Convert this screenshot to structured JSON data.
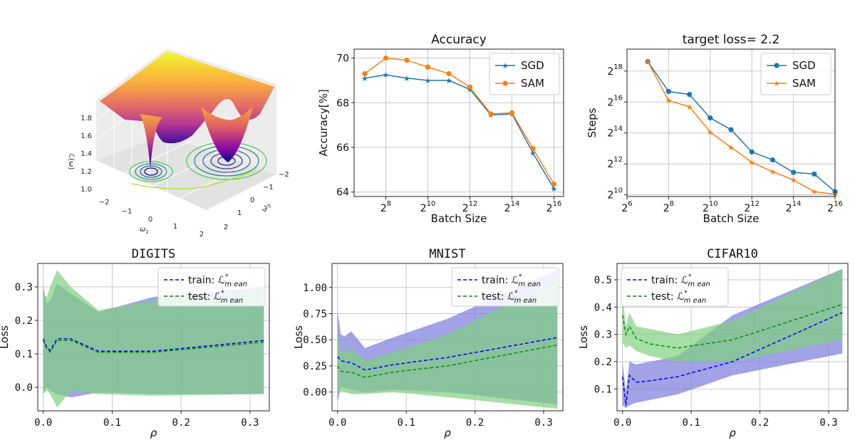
{
  "colors": {
    "sgd": "#1f77b4",
    "sam": "#ff7f0e",
    "train": "#0000ee",
    "test": "#118811",
    "band_train": "#7b7bdb",
    "band_test": "#7fd27f",
    "grid": "#c8c8c8"
  },
  "surface": {
    "zlabel": "ℒ(ω)",
    "xlabel": "ω",
    "xlabel_sub": "1",
    "ylabel": "ω",
    "ylabel_sub": "0",
    "z_ticks": [
      "1.0",
      "1.2",
      "1.4",
      "1.6",
      "1.8"
    ],
    "x_ticks": [
      "−2",
      "−1",
      "0",
      "1",
      "2"
    ],
    "y_ticks": [
      "−2",
      "−1",
      "0",
      "1",
      "2"
    ]
  },
  "chart_data": [
    {
      "id": "accuracy",
      "type": "line",
      "title": "Accuracy",
      "xlabel": "Batch Size",
      "ylabel": "Accuracy[%]",
      "x_scale": "log2",
      "x": [
        128,
        256,
        512,
        1024,
        2048,
        4096,
        8192,
        16384,
        32768,
        65536
      ],
      "xlim": [
        90,
        90000
      ],
      "ylim": [
        63.8,
        70.4
      ],
      "xticks": [
        {
          "base": "2",
          "exp": "8",
          "v": 256
        },
        {
          "base": "2",
          "exp": "10",
          "v": 1024
        },
        {
          "base": "2",
          "exp": "12",
          "v": 4096
        },
        {
          "base": "2",
          "exp": "14",
          "v": 16384
        },
        {
          "base": "2",
          "exp": "16",
          "v": 65536
        }
      ],
      "yticks": [
        {
          "text": "64",
          "v": 64
        },
        {
          "text": "66",
          "v": 66
        },
        {
          "text": "68",
          "v": 68
        },
        {
          "text": "70",
          "v": 70
        }
      ],
      "legend": "top-right",
      "grid": true,
      "series": [
        {
          "name": "SGD",
          "marker": "star",
          "color": "#1f77b4",
          "values": [
            69.1,
            69.25,
            69.1,
            69.0,
            69.0,
            68.6,
            67.45,
            67.5,
            65.75,
            64.15
          ]
        },
        {
          "name": "SAM",
          "marker": "circle",
          "color": "#ff7f0e",
          "values": [
            69.3,
            70.0,
            69.9,
            69.6,
            69.3,
            68.7,
            67.5,
            67.55,
            65.95,
            64.35
          ]
        }
      ]
    },
    {
      "id": "steps",
      "type": "line",
      "title": "target loss= 2.2",
      "xlabel": "Batch Size",
      "ylabel": "Steps",
      "x_scale": "log2",
      "y_scale": "log2",
      "x": [
        128,
        256,
        512,
        1024,
        2048,
        4096,
        8192,
        16384,
        32768,
        65536
      ],
      "xlim": [
        64,
        65536
      ],
      "ylim": [
        950,
        700000
      ],
      "xticks": [
        {
          "base": "2",
          "exp": "6",
          "v": 64
        },
        {
          "base": "2",
          "exp": "8",
          "v": 256
        },
        {
          "base": "2",
          "exp": "10",
          "v": 1024
        },
        {
          "base": "2",
          "exp": "12",
          "v": 4096
        },
        {
          "base": "2",
          "exp": "14",
          "v": 16384
        },
        {
          "base": "2",
          "exp": "16",
          "v": 65536
        }
      ],
      "yticks": [
        {
          "base": "2",
          "exp": "10",
          "v": 1024
        },
        {
          "base": "2",
          "exp": "12",
          "v": 4096
        },
        {
          "base": "2",
          "exp": "14",
          "v": 16384
        },
        {
          "base": "2",
          "exp": "16",
          "v": 65536
        },
        {
          "base": "2",
          "exp": "18",
          "v": 262144
        }
      ],
      "legend": "top-right",
      "grid": true,
      "series": [
        {
          "name": "SGD",
          "marker": "circle",
          "color": "#1f77b4",
          "values": [
            400000,
            105000,
            92000,
            32000,
            19000,
            7000,
            4900,
            2800,
            2600,
            1180
          ]
        },
        {
          "name": "SAM",
          "marker": "star",
          "color": "#ff7f0e",
          "values": [
            400000,
            70000,
            53000,
            17000,
            8600,
            4400,
            2900,
            2000,
            1180,
            1050
          ]
        }
      ]
    },
    {
      "id": "digits",
      "type": "line",
      "title": "DIGITS",
      "xlabel": "ρ",
      "ylabel": "Loss",
      "xlim": [
        -0.008,
        0.328
      ],
      "ylim": [
        -0.07,
        0.37
      ],
      "xticks": [
        {
          "text": "0.0",
          "v": 0
        },
        {
          "text": "0.1",
          "v": 0.1
        },
        {
          "text": "0.2",
          "v": 0.2
        },
        {
          "text": "0.3",
          "v": 0.3
        }
      ],
      "yticks": [
        {
          "text": "0.0",
          "v": 0
        },
        {
          "text": "0.1",
          "v": 0.1
        },
        {
          "text": "0.2",
          "v": 0.2
        },
        {
          "text": "0.3",
          "v": 0.3
        }
      ],
      "x": [
        0,
        0.005,
        0.01,
        0.02,
        0.04,
        0.08,
        0.16,
        0.32
      ],
      "legend": "top-right",
      "grid": true,
      "series": [
        {
          "name": "train",
          "label": "train: ℒ",
          "sub": "m ean",
          "sup": "*",
          "color": "#0000ee",
          "values": [
            0.145,
            0.12,
            0.11,
            0.145,
            0.145,
            0.108,
            0.108,
            0.14
          ],
          "band_lo": [
            -0.015,
            0,
            -0.01,
            -0.02,
            -0.03,
            -0.015,
            -0.02,
            -0.02
          ],
          "band_hi": [
            0.3,
            0.25,
            0.26,
            0.31,
            0.28,
            0.225,
            0.27,
            0.3
          ]
        },
        {
          "name": "test",
          "label": "test: ℒ",
          "sub": "m ean",
          "sup": "*",
          "color": "#118811",
          "values": [
            0.14,
            0.115,
            0.105,
            0.14,
            0.14,
            0.105,
            0.105,
            0.135
          ],
          "band_lo": [
            -0.02,
            -0.01,
            -0.02,
            -0.06,
            -0.01,
            -0.02,
            -0.025,
            -0.02
          ],
          "band_hi": [
            0.28,
            0.27,
            0.3,
            0.35,
            0.3,
            0.23,
            0.26,
            0.29
          ]
        }
      ]
    },
    {
      "id": "mnist",
      "type": "line",
      "title": "MNIST",
      "xlabel": "ρ",
      "ylabel": "Loss",
      "xlim": [
        -0.008,
        0.328
      ],
      "ylim": [
        -0.18,
        1.23
      ],
      "xticks": [
        {
          "text": "0.0",
          "v": 0
        },
        {
          "text": "0.1",
          "v": 0.1
        },
        {
          "text": "0.2",
          "v": 0.2
        },
        {
          "text": "0.3",
          "v": 0.3
        }
      ],
      "yticks": [
        {
          "text": "0.00",
          "v": 0
        },
        {
          "text": "0.25",
          "v": 0.25
        },
        {
          "text": "0.50",
          "v": 0.5
        },
        {
          "text": "0.75",
          "v": 0.75
        },
        {
          "text": "1.00",
          "v": 1.0
        }
      ],
      "x": [
        0,
        0.005,
        0.01,
        0.02,
        0.04,
        0.08,
        0.16,
        0.32
      ],
      "legend": "top-right",
      "grid": true,
      "series": [
        {
          "name": "train",
          "label": "train: ℒ",
          "sub": "m ean",
          "sup": "*",
          "color": "#0000ee",
          "values": [
            0.34,
            0.3,
            0.29,
            0.28,
            0.21,
            0.26,
            0.33,
            0.52
          ],
          "band_lo": [
            -0.1,
            0.05,
            0.04,
            0.02,
            0.0,
            0.02,
            0.0,
            -0.12
          ],
          "band_hi": [
            0.77,
            0.55,
            0.53,
            0.58,
            0.42,
            0.52,
            0.7,
            1.17
          ]
        },
        {
          "name": "test",
          "label": "test: ℒ",
          "sub": "m ean",
          "sup": "*",
          "color": "#118811",
          "values": [
            0.25,
            0.2,
            0.19,
            0.19,
            0.14,
            0.19,
            0.25,
            0.45
          ],
          "band_lo": [
            -0.05,
            0.01,
            0.0,
            -0.02,
            -0.02,
            0.0,
            -0.05,
            -0.16
          ],
          "band_hi": [
            0.55,
            0.4,
            0.38,
            0.42,
            0.3,
            0.38,
            0.55,
            1.08
          ]
        }
      ]
    },
    {
      "id": "cifar10",
      "type": "line",
      "title": "CIFAR10",
      "xlabel": "ρ",
      "ylabel": "Loss",
      "xlim": [
        -0.008,
        0.328
      ],
      "ylim": [
        0.02,
        0.56
      ],
      "xticks": [
        {
          "text": "0.0",
          "v": 0
        },
        {
          "text": "0.1",
          "v": 0.1
        },
        {
          "text": "0.2",
          "v": 0.2
        },
        {
          "text": "0.3",
          "v": 0.3
        }
      ],
      "yticks": [
        {
          "text": "0.1",
          "v": 0.1
        },
        {
          "text": "0.2",
          "v": 0.2
        },
        {
          "text": "0.3",
          "v": 0.3
        },
        {
          "text": "0.4",
          "v": 0.4
        },
        {
          "text": "0.5",
          "v": 0.5
        }
      ],
      "x": [
        0,
        0.005,
        0.01,
        0.02,
        0.04,
        0.08,
        0.16,
        0.32
      ],
      "legend": "top-left",
      "grid": true,
      "series": [
        {
          "name": "train",
          "label": "train: ℒ",
          "sub": "m ean",
          "sup": "*",
          "color": "#0000ee",
          "values": [
            0.145,
            0.04,
            0.15,
            0.125,
            0.13,
            0.145,
            0.2,
            0.38
          ],
          "band_lo": [
            0.04,
            0.03,
            0.04,
            0.05,
            0.06,
            0.08,
            0.15,
            0.23
          ],
          "band_hi": [
            0.2,
            0.09,
            0.2,
            0.19,
            0.2,
            0.22,
            0.37,
            0.54
          ]
        },
        {
          "name": "test",
          "label": "test: ℒ",
          "sub": "m ean",
          "sup": "*",
          "color": "#118811",
          "values": [
            0.37,
            0.3,
            0.33,
            0.285,
            0.265,
            0.25,
            0.28,
            0.41
          ],
          "band_lo": [
            0.27,
            0.25,
            0.26,
            0.24,
            0.22,
            0.2,
            0.2,
            0.28
          ],
          "band_hi": [
            0.45,
            0.33,
            0.38,
            0.33,
            0.32,
            0.3,
            0.35,
            0.54
          ]
        }
      ]
    }
  ]
}
